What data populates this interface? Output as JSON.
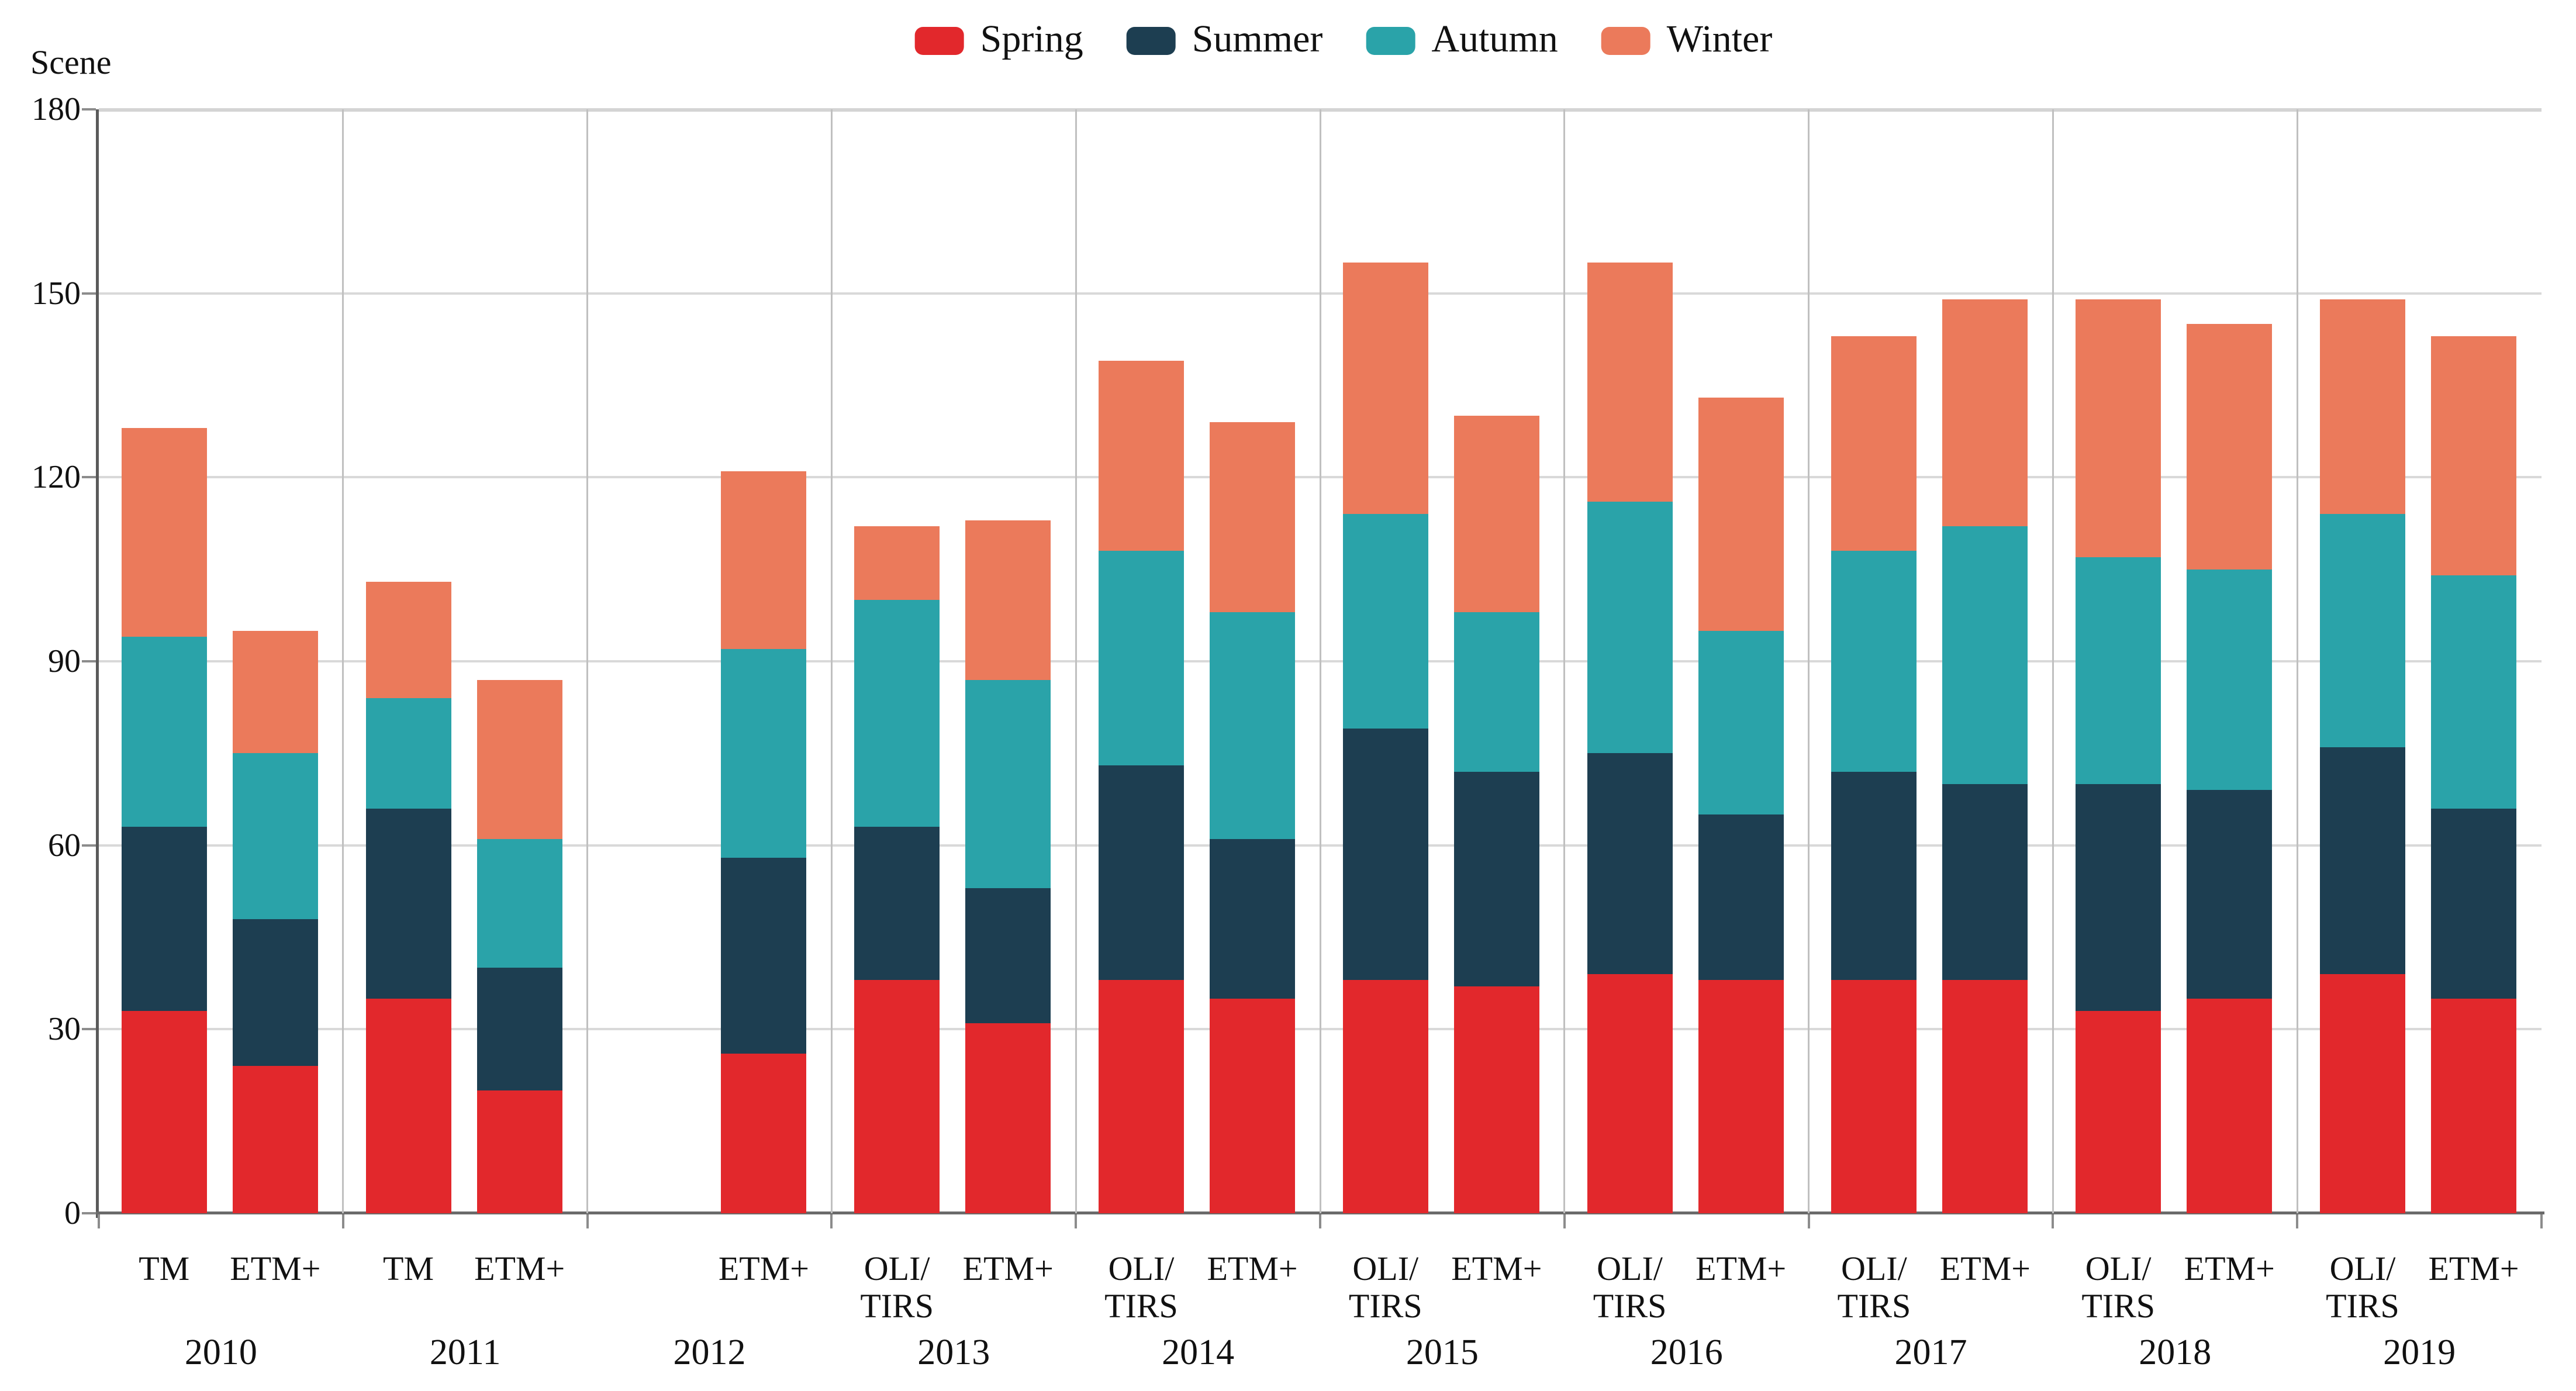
{
  "y_axis_title": "Scene",
  "legend": {
    "items": [
      {
        "label": "Spring",
        "color": "#e2282c"
      },
      {
        "label": "Summer",
        "color": "#1d3e51"
      },
      {
        "label": "Autumn",
        "color": "#2aa3a9"
      },
      {
        "label": "Winter",
        "color": "#eb7a5b"
      }
    ]
  },
  "y_axis": {
    "min": 0,
    "max": 180,
    "step": 30,
    "tick_labels": [
      "0",
      "30",
      "60",
      "90",
      "120",
      "150",
      "180"
    ]
  },
  "chart_data": {
    "type": "bar",
    "stacked": true,
    "title": "",
    "ylabel": "Scene",
    "xlabel": "",
    "ylim": [
      0,
      180
    ],
    "grid": true,
    "legend_position": "top",
    "series_names": [
      "Spring",
      "Summer",
      "Autumn",
      "Winter"
    ],
    "palette": {
      "Spring": "#e2282c",
      "Summer": "#1d3e51",
      "Autumn": "#2aa3a9",
      "Winter": "#eb7a5b"
    },
    "groups": [
      {
        "year": "2010",
        "bars": [
          {
            "sensor": "TM",
            "sensor_label": "TM",
            "slot": 0,
            "values": [
              33,
              30,
              31,
              34
            ]
          },
          {
            "sensor": "ETM+",
            "sensor_label": "ETM+",
            "slot": 1,
            "values": [
              24,
              24,
              27,
              20
            ]
          }
        ]
      },
      {
        "year": "2011",
        "bars": [
          {
            "sensor": "TM",
            "sensor_label": "TM",
            "slot": 0,
            "values": [
              35,
              31,
              18,
              19
            ]
          },
          {
            "sensor": "ETM+",
            "sensor_label": "ETM+",
            "slot": 1,
            "values": [
              20,
              20,
              21,
              26
            ]
          }
        ]
      },
      {
        "year": "2012",
        "bars": [
          {
            "sensor": "ETM+",
            "sensor_label": "ETM+",
            "slot": 1,
            "values": [
              26,
              32,
              34,
              29
            ]
          }
        ]
      },
      {
        "year": "2013",
        "bars": [
          {
            "sensor": "OLI/TIRS",
            "sensor_label": "OLI/\nTIRS",
            "slot": 0,
            "values": [
              38,
              25,
              37,
              12
            ]
          },
          {
            "sensor": "ETM+",
            "sensor_label": "ETM+",
            "slot": 1,
            "values": [
              31,
              22,
              34,
              26
            ]
          }
        ]
      },
      {
        "year": "2014",
        "bars": [
          {
            "sensor": "OLI/TIRS",
            "sensor_label": "OLI/\nTIRS",
            "slot": 0,
            "values": [
              38,
              35,
              35,
              31
            ]
          },
          {
            "sensor": "ETM+",
            "sensor_label": "ETM+",
            "slot": 1,
            "values": [
              35,
              26,
              37,
              31
            ]
          }
        ]
      },
      {
        "year": "2015",
        "bars": [
          {
            "sensor": "OLI/TIRS",
            "sensor_label": "OLI/\nTIRS",
            "slot": 0,
            "values": [
              38,
              41,
              35,
              41
            ]
          },
          {
            "sensor": "ETM+",
            "sensor_label": "ETM+",
            "slot": 1,
            "values": [
              37,
              35,
              26,
              32
            ]
          }
        ]
      },
      {
        "year": "2016",
        "bars": [
          {
            "sensor": "OLI/TIRS",
            "sensor_label": "OLI/\nTIRS",
            "slot": 0,
            "values": [
              39,
              36,
              41,
              39
            ]
          },
          {
            "sensor": "ETM+",
            "sensor_label": "ETM+",
            "slot": 1,
            "values": [
              38,
              27,
              30,
              38
            ]
          }
        ]
      },
      {
        "year": "2017",
        "bars": [
          {
            "sensor": "OLI/TIRS",
            "sensor_label": "OLI/\nTIRS",
            "slot": 0,
            "values": [
              38,
              34,
              36,
              35
            ]
          },
          {
            "sensor": "ETM+",
            "sensor_label": "ETM+",
            "slot": 1,
            "values": [
              38,
              32,
              42,
              37
            ]
          }
        ]
      },
      {
        "year": "2018",
        "bars": [
          {
            "sensor": "OLI/TIRS",
            "sensor_label": "OLI/\nTIRS",
            "slot": 0,
            "values": [
              33,
              37,
              37,
              42
            ]
          },
          {
            "sensor": "ETM+",
            "sensor_label": "ETM+",
            "slot": 1,
            "values": [
              35,
              34,
              36,
              40
            ]
          }
        ]
      },
      {
        "year": "2019",
        "bars": [
          {
            "sensor": "OLI/TIRS",
            "sensor_label": "OLI/\nTIRS",
            "slot": 0,
            "values": [
              39,
              37,
              38,
              35
            ]
          },
          {
            "sensor": "ETM+",
            "sensor_label": "ETM+",
            "slot": 1,
            "values": [
              35,
              31,
              38,
              39
            ]
          }
        ]
      }
    ]
  }
}
